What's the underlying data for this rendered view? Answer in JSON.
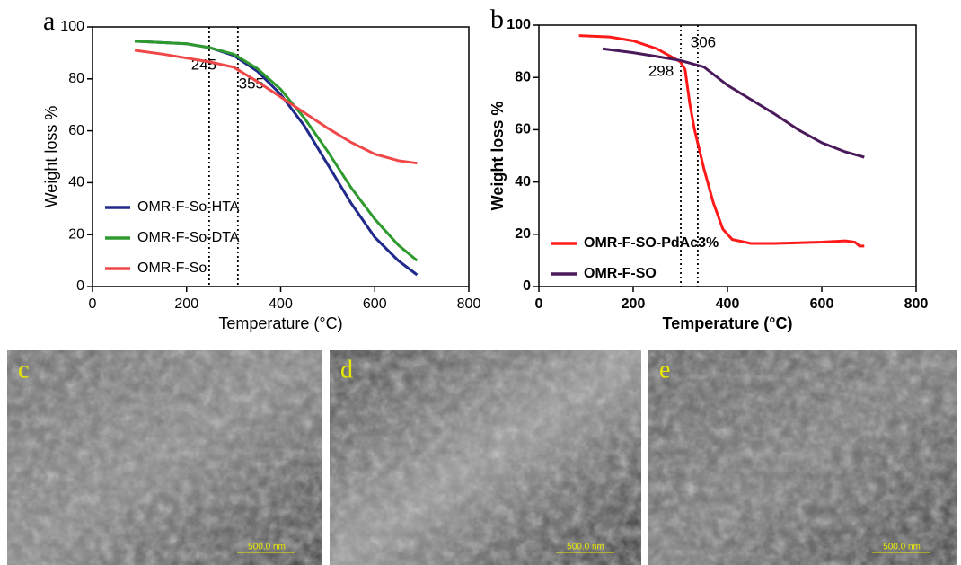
{
  "chart_data": [
    {
      "type": "line",
      "panel": "a",
      "xlabel": "Temperature (°C)",
      "ylabel": "Weight loss %",
      "xlim": [
        0,
        800
      ],
      "ylim": [
        0,
        100
      ],
      "xticks": [
        0,
        200,
        400,
        600,
        800
      ],
      "yticks": [
        0,
        20,
        40,
        60,
        80,
        100
      ],
      "legend": "lower left",
      "markers": [
        {
          "x": 248,
          "label": "245"
        },
        {
          "x": 309,
          "label": "355"
        }
      ],
      "series": [
        {
          "name": "OMR-F-So-HTA",
          "color": "#1f2a8a",
          "x": [
            90,
            200,
            250,
            300,
            350,
            400,
            450,
            500,
            550,
            600,
            650,
            690
          ],
          "values": [
            94.5,
            93.5,
            92,
            89,
            83,
            74,
            62,
            47,
            32,
            19,
            10,
            4.5
          ]
        },
        {
          "name": "OMR-F-So-DTA",
          "color": "#2e9a2e",
          "x": [
            90,
            200,
            250,
            300,
            350,
            400,
            450,
            500,
            550,
            600,
            650,
            690
          ],
          "values": [
            94.5,
            93.5,
            92,
            89.5,
            84,
            76,
            65,
            52,
            38,
            26,
            16,
            10
          ]
        },
        {
          "name": "OMR-F-So",
          "color": "#f04848",
          "x": [
            90,
            150,
            200,
            250,
            300,
            350,
            400,
            450,
            500,
            550,
            600,
            650,
            690
          ],
          "values": [
            91,
            89.5,
            88,
            86.5,
            84.5,
            79,
            73,
            67,
            61,
            55.5,
            51,
            48.5,
            47.5
          ]
        }
      ]
    },
    {
      "type": "line",
      "panel": "b",
      "xlabel": "Temperature (°C)",
      "ylabel": "Weight loss %",
      "xlim": [
        0,
        800
      ],
      "ylim": [
        0,
        100
      ],
      "xticks": [
        0,
        200,
        400,
        600,
        800
      ],
      "yticks": [
        0,
        20,
        40,
        60,
        80,
        100
      ],
      "legend": "lower left",
      "markers": [
        {
          "x": 301,
          "label": "298"
        },
        {
          "x": 337,
          "label": "306"
        }
      ],
      "series": [
        {
          "name": "OMR-F-SO-PdAc3%",
          "color": "#ff1a1a",
          "x": [
            85,
            150,
            200,
            250,
            280,
            300,
            310,
            320,
            330,
            350,
            370,
            390,
            410,
            450,
            500,
            600,
            650,
            670,
            680,
            690
          ],
          "values": [
            96,
            95.5,
            94,
            91,
            88,
            86,
            83,
            70,
            60,
            45,
            32,
            22,
            18,
            16.5,
            16.5,
            17,
            17.5,
            17,
            15.5,
            15.5
          ]
        },
        {
          "name": "OMR-F-SO",
          "color": "#4a1a5a",
          "x": [
            135,
            200,
            250,
            300,
            350,
            400,
            450,
            500,
            550,
            600,
            650,
            690
          ],
          "values": [
            91,
            89.5,
            88,
            86.5,
            84,
            77,
            71.5,
            66,
            60,
            55,
            51.5,
            49.5
          ]
        }
      ]
    }
  ],
  "images": [
    {
      "panel": "c",
      "scale_bar": "500.0 nm"
    },
    {
      "panel": "d",
      "scale_bar": "500.0 nm"
    },
    {
      "panel": "e",
      "scale_bar": "500.0 nm"
    }
  ]
}
